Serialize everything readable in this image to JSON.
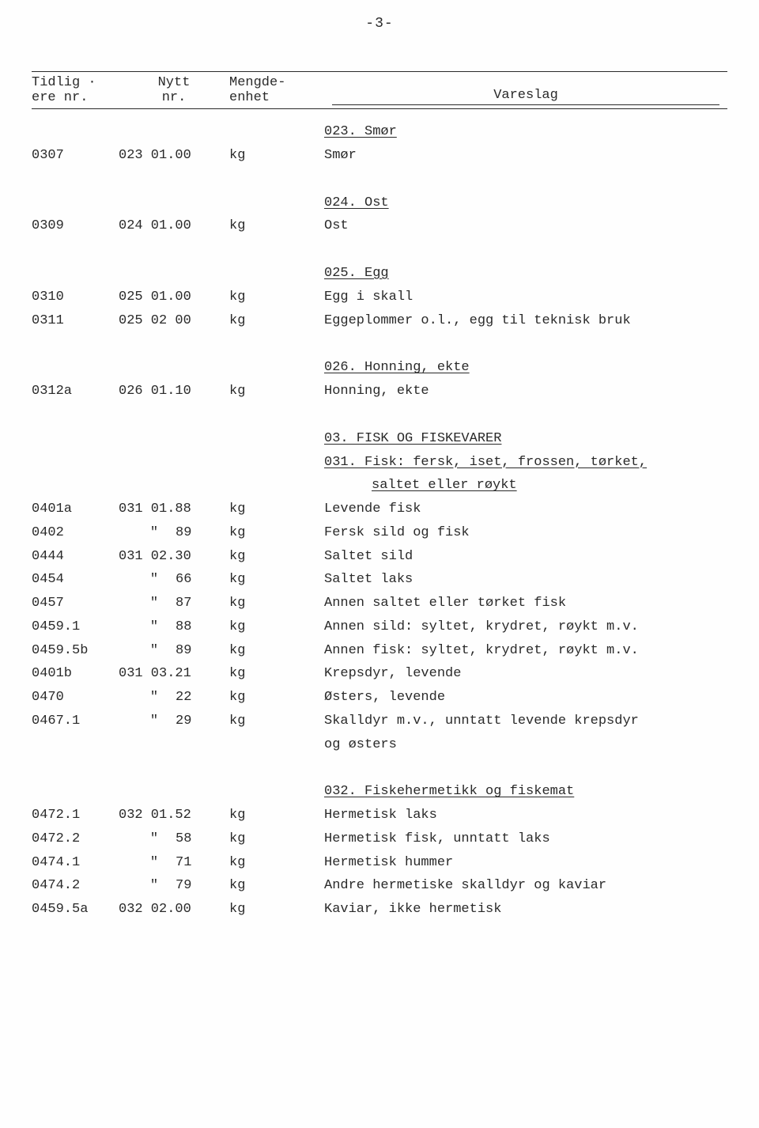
{
  "page_number": "-3-",
  "headers": {
    "col1_line1": "Tidlig ·",
    "col1_line2": "ere nr.",
    "col2_line1": "Nytt",
    "col2_line2": "nr.",
    "col3_line1": "Mengde-",
    "col3_line2": "enhet",
    "col4": "Vareslag"
  },
  "rows": [
    {
      "type": "section",
      "col4": "023. Smør"
    },
    {
      "type": "item",
      "col1": "0307",
      "col2": "023 01.00",
      "col3": "kg",
      "col4": "Smør"
    },
    {
      "type": "spacer"
    },
    {
      "type": "section",
      "col4": "024. Ost"
    },
    {
      "type": "item",
      "col1": "0309",
      "col2": "024 01.00",
      "col3": "kg",
      "col4": "Ost"
    },
    {
      "type": "spacer"
    },
    {
      "type": "section",
      "col4": "025. Egg"
    },
    {
      "type": "item",
      "col1": "0310",
      "col2": "025 01.00",
      "col3": "kg",
      "col4": "Egg i skall"
    },
    {
      "type": "item",
      "col1": "0311",
      "col2": "025 02 00",
      "col3": "kg",
      "col4": "Eggeplommer o.l., egg til teknisk bruk"
    },
    {
      "type": "spacer"
    },
    {
      "type": "section",
      "col4": "026. Honning, ekte"
    },
    {
      "type": "item",
      "col1": "0312a",
      "col2": "026 01.10",
      "col3": "kg",
      "col4": "Honning, ekte"
    },
    {
      "type": "spacer"
    },
    {
      "type": "section",
      "col4": "03. FISK OG FISKEVARER"
    },
    {
      "type": "section",
      "col4": "031. Fisk: fersk, iset, frossen, tørket,"
    },
    {
      "type": "section-indent",
      "col4": "saltet eller røykt"
    },
    {
      "type": "item",
      "col1": "0401a",
      "col2": "031 01.88",
      "col3": "kg",
      "col4": "Levende fisk"
    },
    {
      "type": "ditto",
      "col1": "0402",
      "ditto": "\"",
      "suffix": "89",
      "col3": "kg",
      "col4": "Fersk sild og fisk"
    },
    {
      "type": "item",
      "col1": "0444",
      "col2": "031 02.30",
      "col3": "kg",
      "col4": "Saltet sild"
    },
    {
      "type": "ditto",
      "col1": "0454",
      "ditto": "\"",
      "suffix": "66",
      "col3": "kg",
      "col4": "Saltet laks"
    },
    {
      "type": "ditto",
      "col1": "0457",
      "ditto": "\"",
      "suffix": "87",
      "col3": "kg",
      "col4": "Annen saltet eller tørket fisk"
    },
    {
      "type": "ditto",
      "col1": "0459.1",
      "ditto": "\"",
      "suffix": "88",
      "col3": "kg",
      "col4": "Annen sild: syltet, krydret, røykt m.v."
    },
    {
      "type": "ditto",
      "col1": "0459.5b",
      "ditto": "\"",
      "suffix": "89",
      "col3": "kg",
      "col4": "Annen fisk: syltet, krydret, røykt m.v."
    },
    {
      "type": "item",
      "col1": "0401b",
      "col2": "031 03.21",
      "col3": "kg",
      "col4": "Krepsdyr, levende"
    },
    {
      "type": "ditto",
      "col1": "0470",
      "ditto": "\"",
      "suffix": "22",
      "col3": "kg",
      "col4": "Østers, levende"
    },
    {
      "type": "ditto",
      "col1": "0467.1",
      "ditto": "\"",
      "suffix": "29",
      "col3": "kg",
      "col4": "Skalldyr m.v., unntatt levende krepsdyr"
    },
    {
      "type": "cont",
      "col4": "og østers"
    },
    {
      "type": "spacer"
    },
    {
      "type": "section",
      "col4": "032. Fiskehermetikk og fiskemat"
    },
    {
      "type": "item",
      "col1": "0472.1",
      "col2": "032 01.52",
      "col3": "kg",
      "col4": "Hermetisk laks"
    },
    {
      "type": "ditto",
      "col1": "0472.2",
      "ditto": "\"",
      "suffix": "58",
      "col3": "kg",
      "col4": "Hermetisk fisk, unntatt laks"
    },
    {
      "type": "ditto",
      "col1": "0474.1",
      "ditto": "\"",
      "suffix": "71",
      "col3": "kg",
      "col4": "Hermetisk hummer"
    },
    {
      "type": "ditto",
      "col1": "0474.2",
      "ditto": "\"",
      "suffix": "79",
      "col3": "kg",
      "col4": "Andre hermetiske skalldyr og kaviar"
    },
    {
      "type": "item",
      "col1": "0459.5a",
      "col2": "032 02.00",
      "col3": "kg",
      "col4": "Kaviar, ikke hermetisk"
    }
  ]
}
